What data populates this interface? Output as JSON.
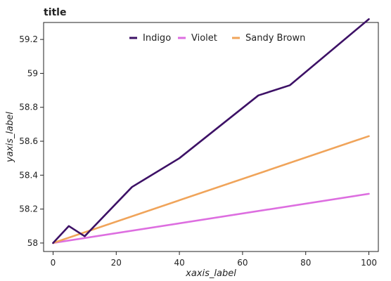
{
  "chart_data": {
    "type": "line",
    "title": "title",
    "xlabel": "xaxis_label",
    "ylabel": "yaxis_label",
    "xlim": [
      -3,
      103
    ],
    "ylim": [
      57.95,
      59.3
    ],
    "xticks": [
      0,
      20,
      40,
      60,
      80,
      100
    ],
    "yticks": [
      58,
      58.2,
      58.4,
      58.6,
      58.8,
      59,
      59.2
    ],
    "grid": false,
    "legend_position": "top",
    "series": [
      {
        "name": "Indigo",
        "color": "#3d1166",
        "x": [
          0,
          5,
          10,
          25,
          40,
          65,
          75,
          100
        ],
        "y": [
          58.0,
          58.1,
          58.04,
          58.33,
          58.5,
          58.87,
          58.93,
          59.32
        ]
      },
      {
        "name": "Violet",
        "color": "#dd6ee0",
        "x": [
          0,
          100
        ],
        "y": [
          58.0,
          58.29
        ]
      },
      {
        "name": "Sandy Brown",
        "color": "#f0a45a",
        "x": [
          0,
          100
        ],
        "y": [
          58.0,
          58.63
        ]
      }
    ]
  }
}
